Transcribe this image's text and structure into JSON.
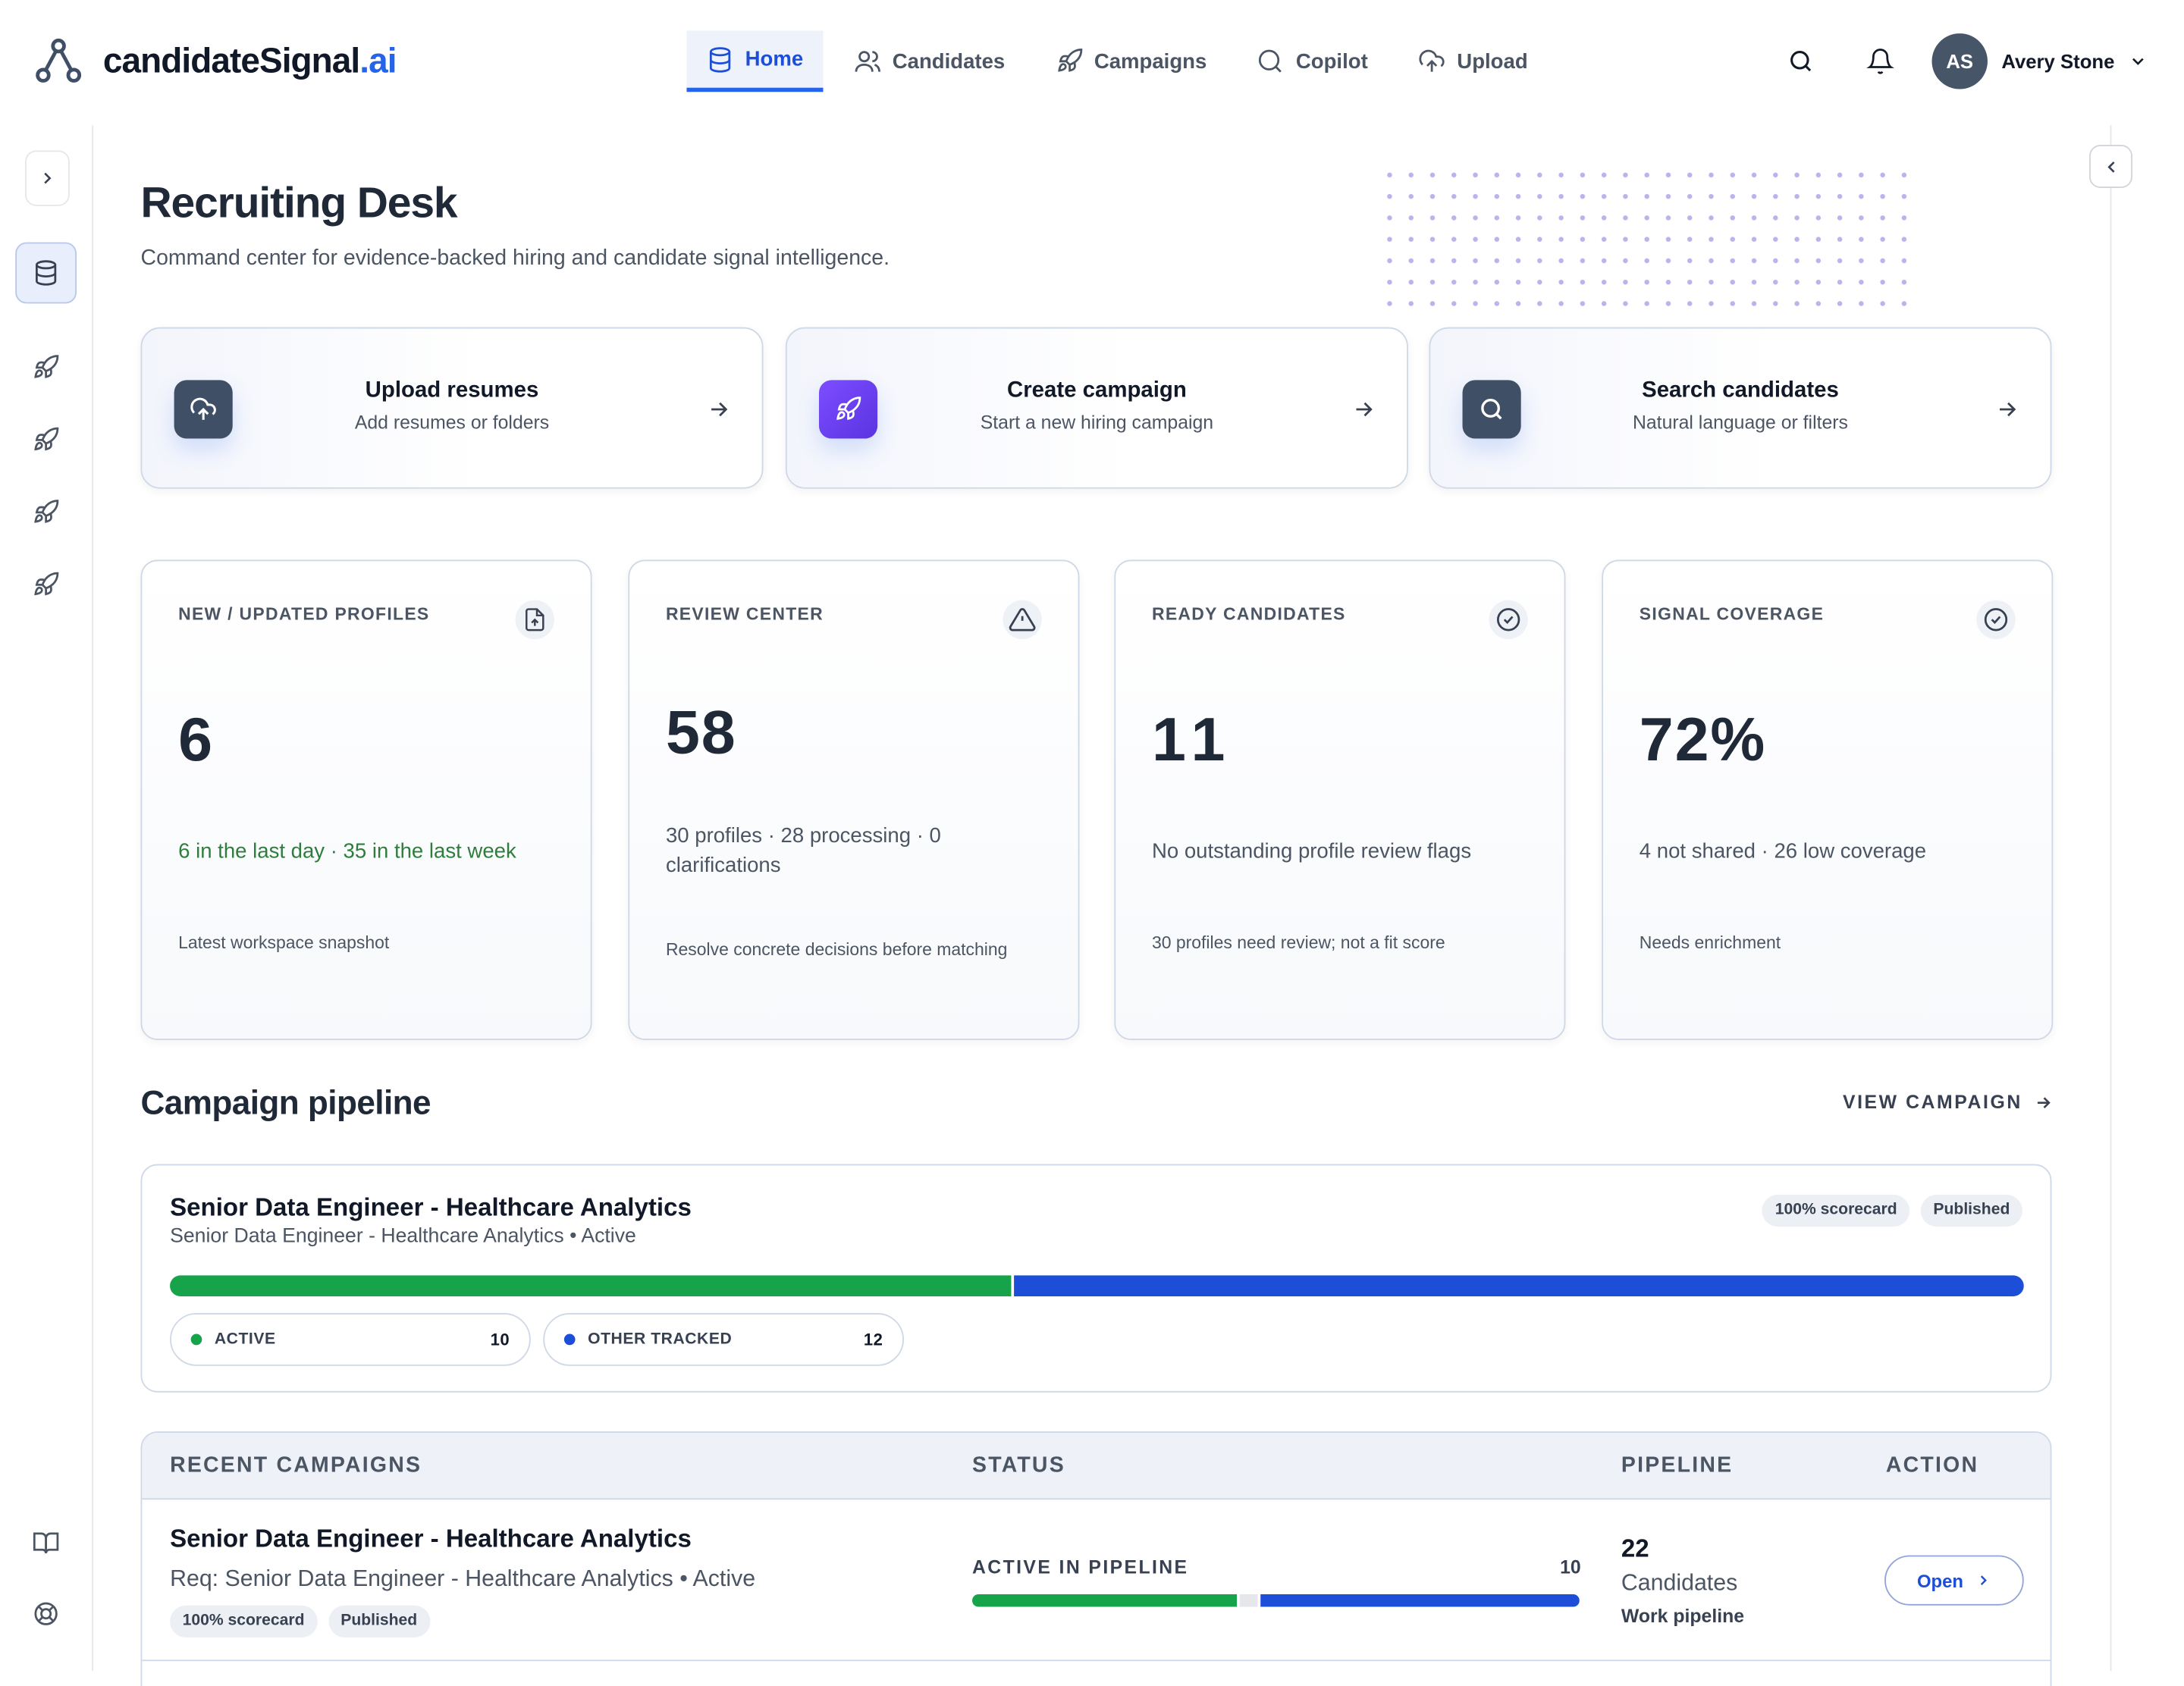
{
  "brand": {
    "name_main": "candidateSignal",
    "name_suffix": ".ai"
  },
  "nav": {
    "home": "Home",
    "candidates": "Candidates",
    "campaigns": "Campaigns",
    "copilot": "Copilot",
    "upload": "Upload"
  },
  "user": {
    "initials": "AS",
    "name": "Avery Stone"
  },
  "page": {
    "title": "Recruiting Desk",
    "subtitle": "Command center for evidence-backed hiring and candidate signal intelligence."
  },
  "actions": [
    {
      "title": "Upload resumes",
      "desc": "Add resumes or folders",
      "icon": "cloud-upload-icon",
      "color": "#3f4f66"
    },
    {
      "title": "Create campaign",
      "desc": "Start a new hiring campaign",
      "icon": "rocket-icon",
      "color": "#6d3ff0"
    },
    {
      "title": "Search candidates",
      "desc": "Natural language or filters",
      "icon": "search-icon",
      "color": "#3f4f66"
    }
  ],
  "stats": [
    {
      "label": "NEW / UPDATED PROFILES",
      "value": "6",
      "detail": "6 in the last day · 35 in the last week",
      "foot": "Latest workspace snapshot",
      "icon": "file-upload-icon"
    },
    {
      "label": "REVIEW CENTER",
      "value": "58",
      "detail": "30 profiles · 28 processing · 0 clarifications",
      "foot": "Resolve concrete decisions before matching",
      "icon": "warning-icon"
    },
    {
      "label": "READY CANDIDATES",
      "value": "11",
      "detail": "No outstanding profile review flags",
      "foot": "30 profiles need review; not a fit score",
      "icon": "check-circle-icon"
    },
    {
      "label": "SIGNAL COVERAGE",
      "value": "72%",
      "detail": "4 not shared · 26 low coverage",
      "foot": "Needs enrichment",
      "icon": "check-circle-icon"
    }
  ],
  "pipeline": {
    "section_title": "Campaign pipeline",
    "view_link": "VIEW CAMPAIGN",
    "campaign_title": "Senior Data Engineer - Healthcare Analytics",
    "campaign_sub": "Senior Data Engineer - Healthcare Analytics • Active",
    "badge_scorecard": "100% scorecard",
    "badge_published": "Published",
    "active_label": "ACTIVE",
    "active_count": 10,
    "other_label": "OTHER TRACKED",
    "other_count": 12,
    "colors": {
      "active": "#16a34a",
      "other": "#1d4ed8"
    }
  },
  "table": {
    "headers": {
      "campaigns": "RECENT CAMPAIGNS",
      "status": "STATUS",
      "pipeline": "PIPELINE",
      "action": "ACTION"
    },
    "rows": [
      {
        "title": "Senior Data Engineer - Healthcare Analytics",
        "sub": "Req: Senior Data Engineer - Healthcare Analytics • Active",
        "badge_scorecard": "100% scorecard",
        "badge_published": "Published",
        "status_label": "ACTIVE IN PIPELINE",
        "status_count": 10,
        "pipeline_total": 22,
        "pipeline_label": "Candidates",
        "pipeline_link": "Work pipeline",
        "action": "Open"
      }
    ]
  }
}
